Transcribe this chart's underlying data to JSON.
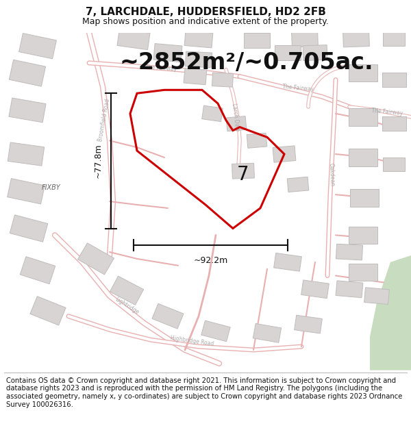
{
  "title": "7, LARCHDALE, HUDDERSFIELD, HD2 2FB",
  "subtitle": "Map shows position and indicative extent of the property.",
  "area_text": "~2852m²/~0.705ac.",
  "label_7": "7",
  "dim_width": "~92.2m",
  "dim_height": "~77.8m",
  "fixby_label": "FIXBY",
  "footer": "Contains OS data © Crown copyright and database right 2021. This information is subject to Crown copyright and database rights 2023 and is reproduced with the permission of HM Land Registry. The polygons (including the associated geometry, namely x, y co-ordinates) are subject to Crown copyright and database rights 2023 Ordnance Survey 100026316.",
  "map_bg": "#f9f6f6",
  "road_color": "#e8b0b0",
  "road_fill": "#ffffff",
  "building_fill": "#d8d4d4",
  "building_edge": "#c0bcbc",
  "property_outline": "#cc0000",
  "dim_line_color": "#111111",
  "text_color": "#111111",
  "road_label_color": "#aaaaaa",
  "green_area": "#c8ddc0",
  "title_fontsize": 11,
  "subtitle_fontsize": 9,
  "area_fontsize": 24,
  "footer_fontsize": 7.2,
  "label_fontsize": 20,
  "dim_fontsize": 9,
  "fixby_fontsize": 7,
  "road_label_fontsize": 5.5
}
